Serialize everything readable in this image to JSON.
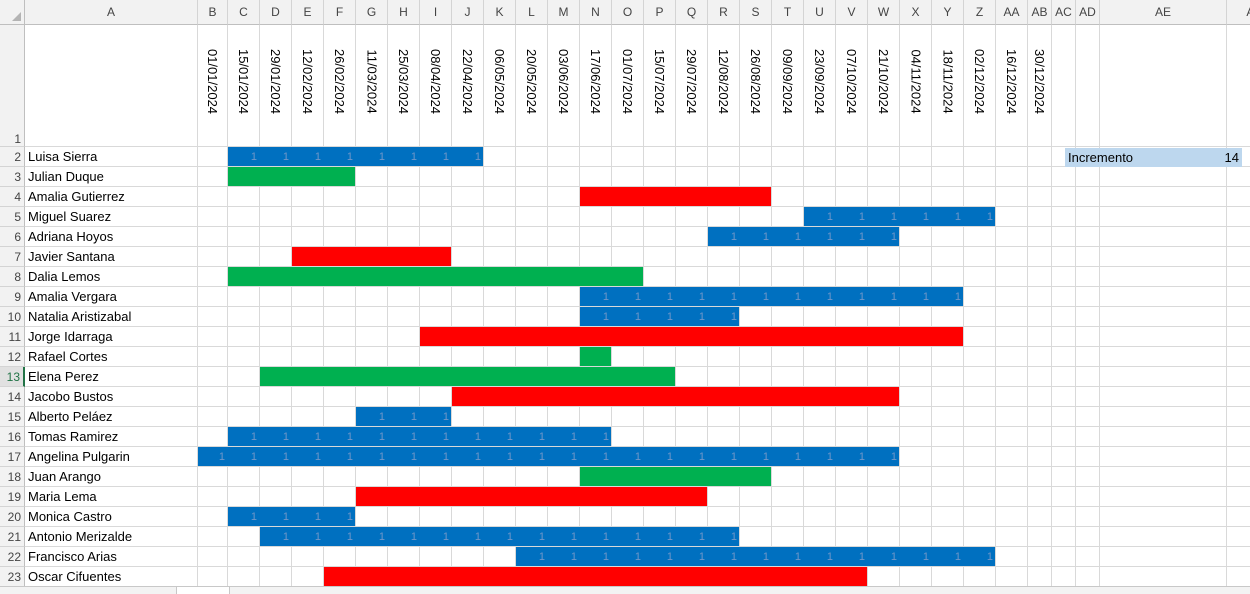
{
  "sheet": {
    "columns": [
      "A",
      "B",
      "C",
      "D",
      "E",
      "F",
      "G",
      "H",
      "I",
      "J",
      "K",
      "L",
      "M",
      "N",
      "O",
      "P",
      "Q",
      "R",
      "S",
      "T",
      "U",
      "V",
      "W",
      "X",
      "Y",
      "Z",
      "AA",
      "AB",
      "AC",
      "AD",
      "AE",
      "AF"
    ],
    "rows": [
      "1",
      "2",
      "3",
      "4",
      "5",
      "6",
      "7",
      "8",
      "9",
      "10",
      "11",
      "12",
      "13",
      "14",
      "15",
      "16",
      "17",
      "18",
      "19",
      "20",
      "21",
      "22",
      "23"
    ],
    "selected_row": "13",
    "dates": [
      "01/01/2024",
      "15/01/2024",
      "29/01/2024",
      "12/02/2024",
      "26/02/2024",
      "11/03/2024",
      "25/03/2024",
      "08/04/2024",
      "22/04/2024",
      "06/05/2024",
      "20/05/2024",
      "03/06/2024",
      "17/06/2024",
      "01/07/2024",
      "15/07/2024",
      "29/07/2024",
      "12/08/2024",
      "26/08/2024",
      "09/09/2024",
      "23/09/2024",
      "07/10/2024",
      "21/10/2024",
      "04/11/2024",
      "18/11/2024",
      "02/12/2024",
      "16/12/2024",
      "30/12/2024"
    ],
    "incremento": {
      "label": "Incremento",
      "value": "14"
    },
    "colors": {
      "blue": "#0070c0",
      "green": "#00b050",
      "red": "#ff0000",
      "cell_value": "#6f97c8"
    },
    "people": [
      {
        "name": "Luisa Sierra",
        "color": "blue",
        "start": 1,
        "end": 8,
        "value": "1"
      },
      {
        "name": "Julian Duque",
        "color": "green",
        "start": 1,
        "end": 4,
        "value": ""
      },
      {
        "name": "Amalia Gutierrez",
        "color": "red",
        "start": 12,
        "end": 17,
        "value": ""
      },
      {
        "name": "Miguel Suarez",
        "color": "blue",
        "start": 19,
        "end": 24,
        "value": "1"
      },
      {
        "name": "Adriana Hoyos",
        "color": "blue",
        "start": 16,
        "end": 21,
        "value": "1"
      },
      {
        "name": "Javier Santana",
        "color": "red",
        "start": 3,
        "end": 7,
        "value": ""
      },
      {
        "name": "Dalia Lemos",
        "color": "green",
        "start": 1,
        "end": 13,
        "value": ""
      },
      {
        "name": "Amalia Vergara",
        "color": "blue",
        "start": 12,
        "end": 23,
        "value": "1"
      },
      {
        "name": "Natalia Aristizabal",
        "color": "blue",
        "start": 12,
        "end": 16,
        "value": "1"
      },
      {
        "name": "Jorge Idarraga",
        "color": "red",
        "start": 7,
        "end": 23,
        "value": ""
      },
      {
        "name": "Rafael Cortes",
        "color": "green",
        "start": 12,
        "end": 12,
        "value": ""
      },
      {
        "name": "Elena Perez",
        "color": "green",
        "start": 2,
        "end": 14,
        "value": ""
      },
      {
        "name": "Jacobo Bustos",
        "color": "red",
        "start": 8,
        "end": 21,
        "value": ""
      },
      {
        "name": "Alberto Peláez",
        "color": "blue",
        "start": 5,
        "end": 7,
        "value": "1"
      },
      {
        "name": "Tomas Ramirez",
        "color": "blue",
        "start": 1,
        "end": 12,
        "value": "1"
      },
      {
        "name": "Angelina Pulgarin",
        "color": "blue",
        "start": 0,
        "end": 21,
        "value": "1"
      },
      {
        "name": "Juan Arango",
        "color": "green",
        "start": 12,
        "end": 17,
        "value": ""
      },
      {
        "name": "Maria Lema",
        "color": "red",
        "start": 5,
        "end": 15,
        "value": ""
      },
      {
        "name": "Monica Castro",
        "color": "blue",
        "start": 1,
        "end": 4,
        "value": "1"
      },
      {
        "name": "Antonio Merizalde",
        "color": "blue",
        "start": 2,
        "end": 16,
        "value": "1"
      },
      {
        "name": "Francisco Arias",
        "color": "blue",
        "start": 10,
        "end": 24,
        "value": "1"
      },
      {
        "name": "Oscar Cifuentes",
        "color": "red",
        "start": 4,
        "end": 20,
        "value": ""
      }
    ]
  }
}
